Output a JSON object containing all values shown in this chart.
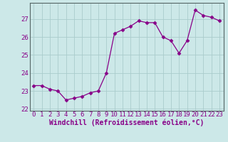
{
  "x": [
    0,
    1,
    2,
    3,
    4,
    5,
    6,
    7,
    8,
    9,
    10,
    11,
    12,
    13,
    14,
    15,
    16,
    17,
    18,
    19,
    20,
    21,
    22,
    23
  ],
  "y": [
    23.3,
    23.3,
    23.1,
    23.0,
    22.5,
    22.6,
    22.7,
    22.9,
    23.0,
    24.0,
    26.2,
    26.4,
    26.6,
    26.9,
    26.8,
    26.8,
    26.0,
    25.8,
    25.1,
    25.8,
    27.5,
    27.2,
    27.1,
    26.9
  ],
  "title": "",
  "xlabel": "Windchill (Refroidissement éolien,°C)",
  "ylabel": "",
  "ylim": [
    21.9,
    27.9
  ],
  "xlim": [
    -0.5,
    23.5
  ],
  "yticks": [
    22,
    23,
    24,
    25,
    26,
    27
  ],
  "xticks": [
    0,
    1,
    2,
    3,
    4,
    5,
    6,
    7,
    8,
    9,
    10,
    11,
    12,
    13,
    14,
    15,
    16,
    17,
    18,
    19,
    20,
    21,
    22,
    23
  ],
  "line_color": "#880088",
  "marker": "D",
  "marker_size": 2.5,
  "bg_color": "#cce8e8",
  "grid_color": "#aacccc",
  "tick_label_color": "#880088",
  "axis_label_color": "#880088",
  "font_size": 6.5,
  "label_font_size": 7
}
